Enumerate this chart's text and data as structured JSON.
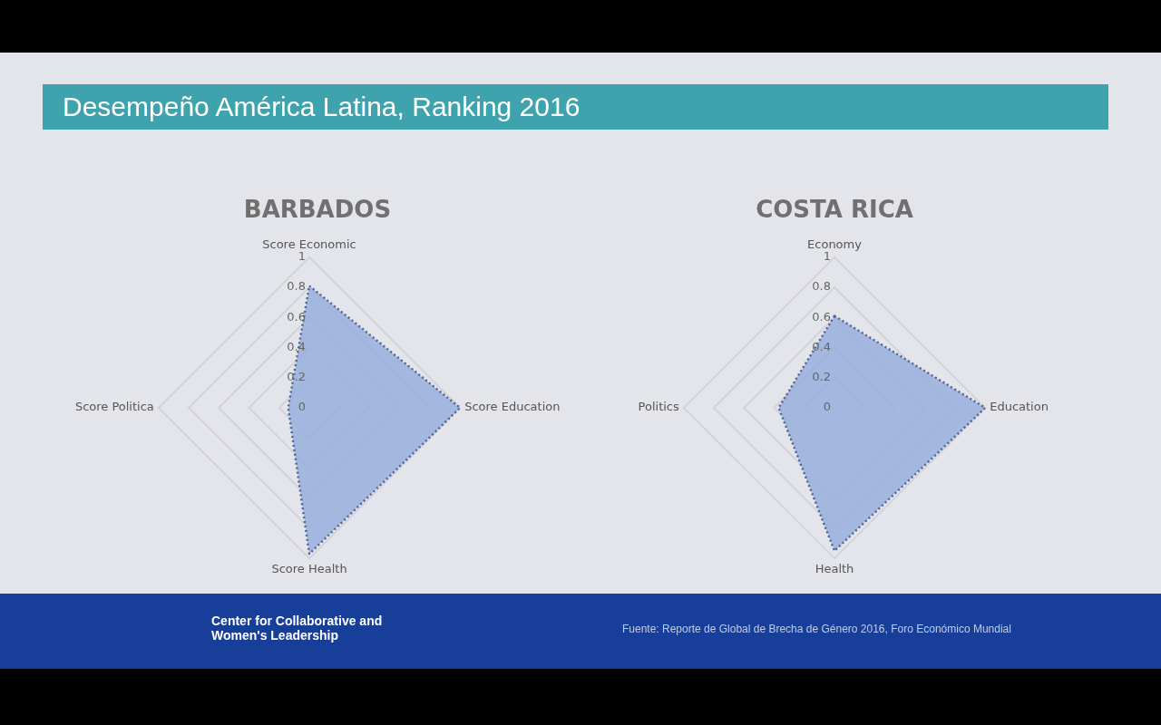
{
  "chart_data": [
    {
      "type": "radar",
      "title": "BARBADOS",
      "categories": [
        "Score Economic",
        "Score Education",
        "Score Health",
        "Score Politica"
      ],
      "series": [
        {
          "color": "#9aafdc",
          "values": [
            0.81,
            1.0,
            0.97,
            0.14
          ]
        }
      ],
      "ylim": [
        0,
        1
      ],
      "yticks": [
        0,
        0.2,
        0.4,
        0.6,
        0.8,
        1
      ],
      "grid": true,
      "marker": "none",
      "line_style": "dotted",
      "annotations": [
        "Desempeño América Latina, Ranking 2016",
        "Center for Collaborative and Women's Leadership"
      ]
    },
    {
      "type": "radar",
      "title": "COSTA RICA",
      "categories": [
        "Economy",
        "Education",
        "Health",
        "Politics"
      ],
      "series": [
        {
          "color": "#9aafdc",
          "values": [
            0.61,
            1.0,
            0.95,
            0.37
          ]
        }
      ],
      "ylim": [
        0,
        1
      ],
      "yticks": [
        0,
        0.2,
        0.4,
        0.6,
        0.8,
        1
      ],
      "grid": true,
      "marker": "none",
      "line_style": "dotted",
      "annotations": [
        "Fuente: Reporte de Global de Brecha de Género 2016,  Foro Económico Mundial"
      ]
    }
  ]
}
